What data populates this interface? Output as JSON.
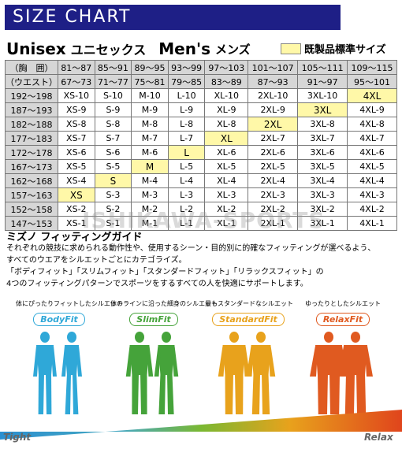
{
  "banner_title": "SIZE CHART",
  "header": {
    "unisex": "Unisex",
    "unisex_kana": "ユニセックス",
    "mens": "Men's",
    "mens_kana": "メンズ",
    "legend_label": "既製品標準サイズ"
  },
  "colors": {
    "banner": "#1e1f86",
    "highlight": "#fff8a8",
    "header_cell": "#d6d6d6"
  },
  "table": {
    "chest_label": "（胸　囲）",
    "waist_label": "（ウエスト）",
    "chest": [
      "81～87",
      "85～91",
      "89～95",
      "93～99",
      "97～103",
      "101～107",
      "105～111",
      "109～115"
    ],
    "waist": [
      "67～73",
      "71～77",
      "75～81",
      "79～85",
      "83～89",
      "87～93",
      "91～97",
      "95～101"
    ],
    "rows": [
      {
        "height": "192～198",
        "cells": [
          "XS-10",
          "S-10",
          "M-10",
          "L-10",
          "XL-10",
          "2XL-10",
          "3XL-10",
          "4XL"
        ],
        "hl": 7
      },
      {
        "height": "187～193",
        "cells": [
          "XS-9",
          "S-9",
          "M-9",
          "L-9",
          "XL-9",
          "2XL-9",
          "3XL",
          "4XL-9"
        ],
        "hl": 6
      },
      {
        "height": "182～188",
        "cells": [
          "XS-8",
          "S-8",
          "M-8",
          "L-8",
          "XL-8",
          "2XL",
          "3XL-8",
          "4XL-8"
        ],
        "hl": 5
      },
      {
        "height": "177～183",
        "cells": [
          "XS-7",
          "S-7",
          "M-7",
          "L-7",
          "XL",
          "2XL-7",
          "3XL-7",
          "4XL-7"
        ],
        "hl": 4
      },
      {
        "height": "172～178",
        "cells": [
          "XS-6",
          "S-6",
          "M-6",
          "L",
          "XL-6",
          "2XL-6",
          "3XL-6",
          "4XL-6"
        ],
        "hl": 3
      },
      {
        "height": "167～173",
        "cells": [
          "XS-5",
          "S-5",
          "M",
          "L-5",
          "XL-5",
          "2XL-5",
          "3XL-5",
          "4XL-5"
        ],
        "hl": 2
      },
      {
        "height": "162～168",
        "cells": [
          "XS-4",
          "S",
          "M-4",
          "L-4",
          "XL-4",
          "2XL-4",
          "3XL-4",
          "4XL-4"
        ],
        "hl": 1
      },
      {
        "height": "157～163",
        "cells": [
          "XS",
          "S-3",
          "M-3",
          "L-3",
          "XL-3",
          "2XL-3",
          "3XL-3",
          "4XL-3"
        ],
        "hl": 0
      },
      {
        "height": "152～158",
        "cells": [
          "XS-2",
          "S-2",
          "M-2",
          "L-2",
          "XL-2",
          "2XL-2",
          "3XL-2",
          "4XL-2"
        ],
        "hl": -1
      },
      {
        "height": "147～153",
        "cells": [
          "XS-1",
          "S-1",
          "M-1",
          "L-1",
          "XL-1",
          "2XL-1",
          "3XL-1",
          "4XL-1"
        ],
        "hl": -1
      }
    ]
  },
  "watermark": "ISHIKAWA-SPORTS",
  "guide": {
    "title": "ミズノ フィッティングガイド",
    "lines": [
      "それぞれの競技に求められる動作性や、使用するシーン・目的別に的確なフィッティングが選べるよう、",
      "すべてのウエアをシルエットごとにカテゴライズ。",
      "「ボディフィット」「スリムフィット」「スタンダードフィット」「リラックスフィット」の",
      "4つのフィッティングパターンでスポーツをするすべての人を快適にサポートします。"
    ]
  },
  "fits": [
    {
      "caption": "体にぴったりフィットしたシルエット",
      "badge": "BodyFit",
      "color": "#2fa8d8"
    },
    {
      "caption": "体のラインに沿った細身のシルエット",
      "badge": "SlimFit",
      "color": "#45a33a"
    },
    {
      "caption": "最もスタンダードなシルエット",
      "badge": "StandardFit",
      "color": "#e8a21c"
    },
    {
      "caption": "ゆったりとしたシルエット",
      "badge": "RelaxFit",
      "color": "#e05a20"
    }
  ],
  "scale": {
    "left": "Tight",
    "right": "Relax"
  }
}
